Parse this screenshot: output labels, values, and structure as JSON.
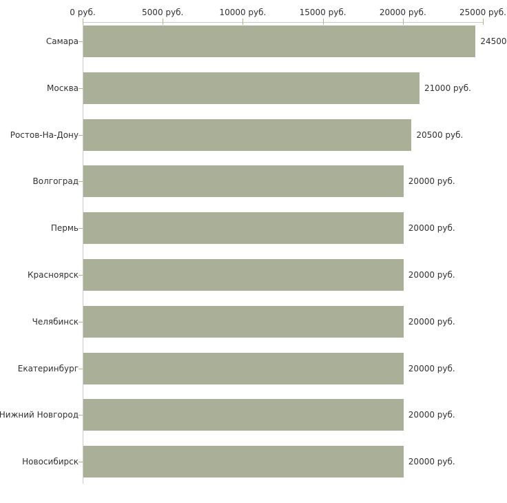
{
  "chart_data": {
    "type": "bar",
    "orientation": "horizontal",
    "title": "",
    "xlabel": "",
    "ylabel": "",
    "unit": "руб.",
    "categories": [
      "Самара",
      "Москва",
      "Ростов-На-Дону",
      "Волгоград",
      "Пермь",
      "Красноярск",
      "Челябинск",
      "Екатеринбург",
      "Нижний Новгород",
      "Новосибирск"
    ],
    "values": [
      24500,
      21000,
      20500,
      20000,
      20000,
      20000,
      20000,
      20000,
      20000,
      20000
    ],
    "value_labels": [
      "24500",
      "21000 руб.",
      "20500 руб.",
      "20000 руб.",
      "20000 руб.",
      "20000 руб.",
      "20000 руб.",
      "20000 руб.",
      "20000 руб.",
      "20000 руб."
    ],
    "x_tick_labels": [
      "0 руб.",
      "5000 руб.",
      "10000 руб.",
      "15000 руб.",
      "20000 руб.",
      "25000 руб."
    ],
    "x_tick_values": [
      0,
      5000,
      10000,
      15000,
      20000,
      25000
    ],
    "xlim": [
      0,
      25000
    ],
    "axis_position": "top",
    "grid": false,
    "legend": false,
    "colors": {
      "bar": "#aab098",
      "axis_line": "#c9c9c9",
      "tick": "#b1b388",
      "text": "#303030",
      "background": "#ffffff"
    }
  }
}
